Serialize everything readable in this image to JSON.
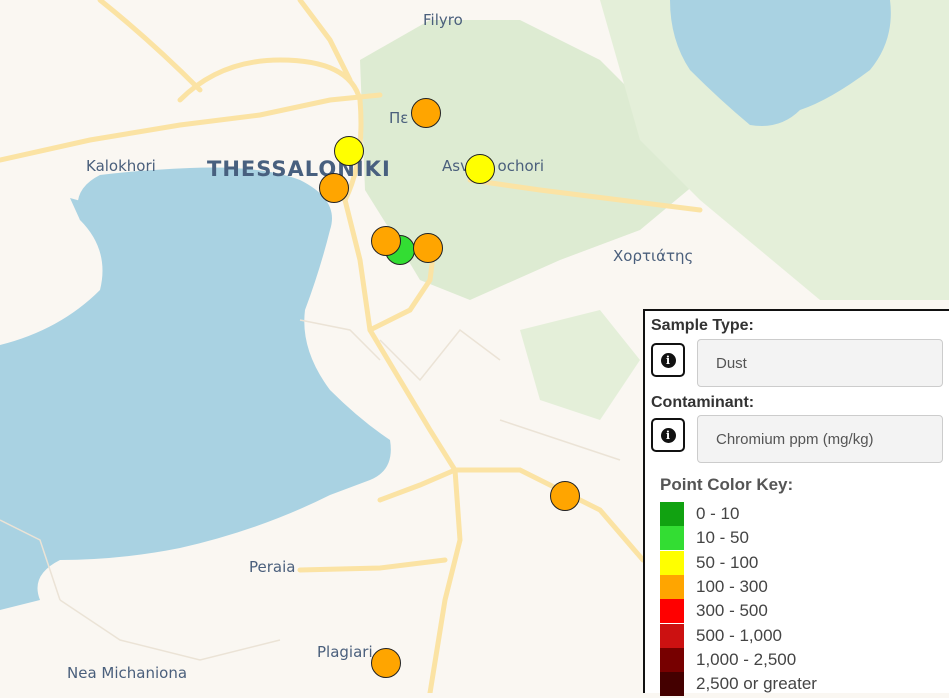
{
  "map": {
    "colors": {
      "land": "#faf7f2",
      "water": "#a9d2e2",
      "park": "#d6e7c9",
      "road": "#fbe3a4",
      "label": "#4a5f7c"
    },
    "place_labels": [
      {
        "id": "filyro",
        "text": "Filyro",
        "kind": "town"
      },
      {
        "id": "thessaloniki",
        "text": "THESSALONIKI",
        "kind": "city"
      },
      {
        "id": "kalokhori",
        "text": "Kalokhori",
        "kind": "town"
      },
      {
        "id": "pefka",
        "text": "Πε",
        "kind": "town"
      },
      {
        "id": "asvestochori",
        "text": "Asv      ochori",
        "kind": "town"
      },
      {
        "id": "hortiatis",
        "text": "Χορτιάτης",
        "kind": "town"
      },
      {
        "id": "peraia",
        "text": "Peraia",
        "kind": "town"
      },
      {
        "id": "plagiari",
        "text": "Plagiari",
        "kind": "town"
      },
      {
        "id": "nea-michaniona",
        "text": "Nea Michaniona",
        "kind": "town"
      }
    ],
    "sample_points": [
      {
        "range": "100 - 300",
        "color": "#ffa500"
      },
      {
        "range": "50 - 100",
        "color": "#ffff00"
      },
      {
        "range": "50 - 100",
        "color": "#ffff00"
      },
      {
        "range": "100 - 300",
        "color": "#ffa500"
      },
      {
        "range": "10 - 50",
        "color": "#33dd33"
      },
      {
        "range": "100 - 300",
        "color": "#ffa500"
      },
      {
        "range": "100 - 300",
        "color": "#ffa500"
      },
      {
        "range": "100 - 300",
        "color": "#ffa500"
      },
      {
        "range": "100 - 300",
        "color": "#ffa500"
      }
    ]
  },
  "legend": {
    "sample_type_label": "Sample Type:",
    "sample_type_value": "Dust",
    "contaminant_label": "Contaminant:",
    "contaminant_value": "Chromium ppm (mg/kg)",
    "info_icon": "info-circle-icon",
    "key_title": "Point Color Key:",
    "key_items": [
      {
        "label": "0 - 10",
        "color": "#11a211"
      },
      {
        "label": "10 - 50",
        "color": "#33dd33"
      },
      {
        "label": "50 - 100",
        "color": "#ffff00"
      },
      {
        "label": "100 - 300",
        "color": "#ffa500"
      },
      {
        "label": "300 - 500",
        "color": "#ff0000"
      },
      {
        "label": "500 - 1,000",
        "color": "#cc1111"
      },
      {
        "label": "1,000 - 2,500",
        "color": "#770000"
      },
      {
        "label": "2,500 or greater",
        "color": "#440000"
      }
    ]
  }
}
